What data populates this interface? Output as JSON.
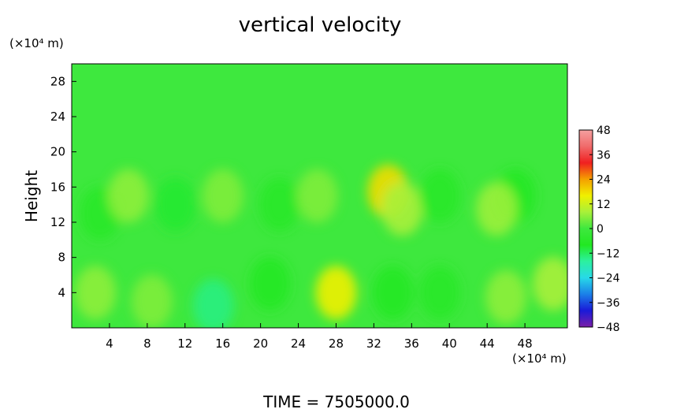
{
  "chart_data": {
    "type": "heatmap",
    "title": "vertical velocity",
    "ylabel": "Height",
    "y_unit": "(×10⁴ m)",
    "x_unit": "(×10⁴ m)",
    "xlim": [
      0,
      52.5
    ],
    "ylim": [
      0,
      30
    ],
    "x_ticks": [
      4,
      8,
      12,
      16,
      20,
      24,
      28,
      32,
      36,
      40,
      44,
      48
    ],
    "y_ticks": [
      4,
      8,
      12,
      16,
      20,
      24,
      28
    ],
    "background_value": 0,
    "anomalies": [
      {
        "x": 2.5,
        "y": 4,
        "value": 6
      },
      {
        "x": 8.5,
        "y": 3,
        "value": 5
      },
      {
        "x": 15,
        "y": 2.5,
        "value": -14
      },
      {
        "x": 21,
        "y": 5,
        "value": -7
      },
      {
        "x": 28,
        "y": 4,
        "value": 16
      },
      {
        "x": 34,
        "y": 4,
        "value": -8
      },
      {
        "x": 39,
        "y": 4,
        "value": -6
      },
      {
        "x": 46,
        "y": 3.5,
        "value": 6
      },
      {
        "x": 51,
        "y": 5,
        "value": 8
      },
      {
        "x": 3,
        "y": 13,
        "value": -6
      },
      {
        "x": 6,
        "y": 15,
        "value": 6
      },
      {
        "x": 11,
        "y": 14,
        "value": -9
      },
      {
        "x": 16,
        "y": 15,
        "value": 5
      },
      {
        "x": 22,
        "y": 14,
        "value": -6
      },
      {
        "x": 26,
        "y": 15,
        "value": 5
      },
      {
        "x": 33.5,
        "y": 15.5,
        "value": 18
      },
      {
        "x": 35,
        "y": 13.5,
        "value": 8
      },
      {
        "x": 39,
        "y": 15,
        "value": -6
      },
      {
        "x": 47,
        "y": 15,
        "value": -8
      },
      {
        "x": 45,
        "y": 13.5,
        "value": 7
      }
    ],
    "colorbar": {
      "ticks": [
        48,
        36,
        24,
        12,
        0,
        -12,
        -24,
        -36,
        -48
      ],
      "range": [
        -48,
        48
      ],
      "colors": [
        "#7a1fa8",
        "#1a1ad8",
        "#1b80e8",
        "#27d9e8",
        "#2cf0a0",
        "#22e822",
        "#3ee83e",
        "#a8f03a",
        "#f0f000",
        "#f5a000",
        "#f02020",
        "#f06a6a",
        "#f4a0a0"
      ]
    },
    "footer": "TIME = 7505000.0"
  }
}
